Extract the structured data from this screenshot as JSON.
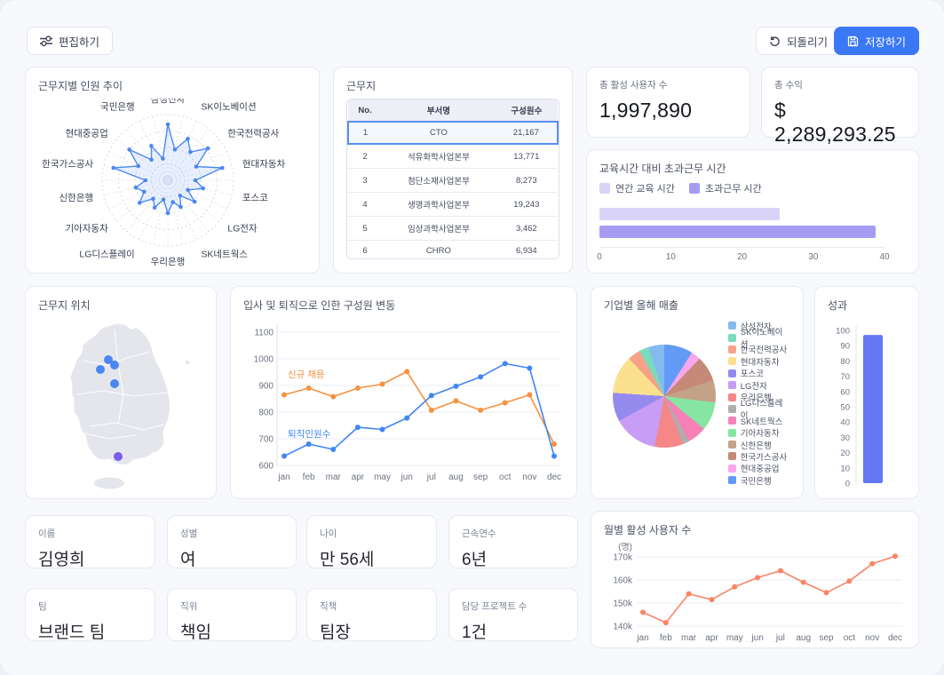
{
  "toolbar": {
    "edit_label": "편집하기",
    "undo_label": "되돌리기",
    "save_label": "저장하기"
  },
  "cards": {
    "table": {
      "title": "근무지",
      "columns": [
        "No.",
        "부서명",
        "구성원수"
      ],
      "rows": [
        [
          "1",
          "CTO",
          "21,167"
        ],
        [
          "2",
          "석유화학사업본부",
          "13,771"
        ],
        [
          "3",
          "첨단소재사업본부",
          "8,273"
        ],
        [
          "4",
          "생명과학사업본부",
          "19,243"
        ],
        [
          "5",
          "임상과학사업본부",
          "3,462"
        ],
        [
          "6",
          "CHRO",
          "6,934"
        ]
      ],
      "selected_row_index": 0
    },
    "stat_users": {
      "label": "총 활성 사용자 수",
      "value": "1,997,890"
    },
    "stat_revenue": {
      "label": "총 수익",
      "value": "$ 2,289,293.25"
    },
    "map": {
      "title": "근무지 위치",
      "points": [
        {
          "x": 79,
          "y": 47,
          "color": "#4b87f2"
        },
        {
          "x": 86,
          "y": 53,
          "color": "#4b87f2"
        },
        {
          "x": 70,
          "y": 58,
          "color": "#4b87f2"
        },
        {
          "x": 86,
          "y": 74,
          "color": "#4b87f2"
        },
        {
          "x": 90,
          "y": 156,
          "color": "#7d5bee"
        }
      ]
    },
    "fields": {
      "name": {
        "label": "이름",
        "value": "김영희"
      },
      "gender": {
        "label": "성별",
        "value": "여"
      },
      "age": {
        "label": "나이",
        "value": "만 56세"
      },
      "tenure": {
        "label": "근속연수",
        "value": "6년"
      },
      "team": {
        "label": "팀",
        "value": "브랜드 팀"
      },
      "position": {
        "label": "직위",
        "value": "책임"
      },
      "role": {
        "label": "직책",
        "value": "팀장"
      },
      "projects": {
        "label": "담당 프로젝트 수",
        "value": "1건"
      }
    }
  },
  "chart_data": [
    {
      "id": "radar-headcount",
      "type": "radar",
      "title": "근무지별 인원 추이",
      "categories": [
        "삼성전자",
        "SK이노베이션",
        "한국전력공사",
        "현대자동차",
        "포스코",
        "LG전자",
        "SK네트웍스",
        "우리은행",
        "LG디스플레이",
        "기아자동차",
        "신한은행",
        "한국가스공사",
        "현대중공업",
        "국민은행"
      ],
      "values": [
        85,
        70,
        78,
        85,
        55,
        52,
        45,
        50,
        46,
        55,
        50,
        85,
        75,
        58
      ],
      "between_values": [
        48,
        55,
        48,
        42,
        34,
        30,
        34,
        30,
        36,
        40,
        34,
        50,
        40,
        34
      ],
      "rlim": [
        0,
        100
      ],
      "color": "#4b87f2"
    },
    {
      "id": "hours-bars",
      "type": "bar",
      "orientation": "horizontal",
      "title": "교육시간 대비 초과근무 시간",
      "categories": [
        "연간 교육 시간",
        "초과근무 시간"
      ],
      "values": [
        25.3,
        38.7
      ],
      "colors": [
        "#d9d3f8",
        "#a69bf3"
      ],
      "xlim": [
        0,
        40
      ],
      "xticks": [
        0,
        10,
        20,
        30,
        40
      ]
    },
    {
      "id": "attrition-line",
      "type": "line",
      "title": "입사 및 퇴직으로 인한 구성원 변동",
      "x": [
        "jan",
        "feb",
        "mar",
        "apr",
        "may",
        "jun",
        "jul",
        "aug",
        "sep",
        "oct",
        "nov",
        "dec"
      ],
      "series": [
        {
          "name": "신규 채용",
          "color": "#f79240",
          "values": [
            865,
            890,
            858,
            890,
            905,
            952,
            807,
            842,
            807,
            835,
            865,
            680
          ]
        },
        {
          "name": "퇴직인원수",
          "color": "#4186f5",
          "values": [
            635,
            680,
            660,
            743,
            735,
            778,
            862,
            897,
            932,
            982,
            965,
            635
          ]
        }
      ],
      "ylim": [
        600,
        1100
      ],
      "yticks": [
        600,
        700,
        800,
        900,
        1000,
        1100
      ],
      "annotations": [
        {
          "text": "신규 채용",
          "color": "#f79240",
          "y_value": 930
        },
        {
          "text": "퇴직인원수",
          "color": "#4186f5",
          "y_value": 706
        }
      ]
    },
    {
      "id": "revenue-pie",
      "type": "pie",
      "title": "기업별 올해 매출",
      "labels": [
        "삼성전자",
        "SK이노베이션",
        "한국전력공사",
        "현대자동차",
        "포스코",
        "LG전자",
        "우리은행",
        "LG디스플레이",
        "SK네트웍스",
        "기아자동차",
        "신한은행",
        "한국가스공사",
        "현대중공업",
        "국민은행"
      ],
      "values": [
        5,
        3,
        4,
        12,
        9,
        14,
        9,
        2,
        6,
        9,
        7,
        8,
        3,
        9
      ],
      "colors": [
        "#85b9f0",
        "#79dcba",
        "#f6a289",
        "#fbe08e",
        "#958bee",
        "#c79df6",
        "#f58789",
        "#aeaeae",
        "#f780b6",
        "#86e5a2",
        "#c4a287",
        "#c58a77",
        "#f9a6ec",
        "#639af5"
      ],
      "direction": "counterclockwise-from-top",
      "legend_position": "right"
    },
    {
      "id": "performance-bar",
      "type": "bar",
      "title": "성과",
      "categories": [
        ""
      ],
      "values": [
        97
      ],
      "color": "#6478f2",
      "ylim": [
        0,
        100
      ],
      "yticks": [
        0,
        10,
        20,
        30,
        40,
        50,
        60,
        70,
        80,
        90,
        100
      ]
    },
    {
      "id": "mau-line",
      "type": "line",
      "title": "월별 활성 사용자 수",
      "unit_label": "(명)",
      "x": [
        "jan",
        "feb",
        "mar",
        "apr",
        "may",
        "jun",
        "jul",
        "aug",
        "sep",
        "oct",
        "nov",
        "dec"
      ],
      "series": [
        {
          "name": "월별 활성 사용자 수",
          "color": "#fa8464",
          "values": [
            146,
            141.5,
            154,
            151.5,
            157,
            161,
            164,
            159,
            154.5,
            159.5,
            167,
            170.3
          ]
        }
      ],
      "ylim": [
        140,
        170
      ],
      "yticks": [
        140,
        150,
        160,
        170
      ],
      "ytick_labels": [
        "140k",
        "150k",
        "160k",
        "170k"
      ]
    }
  ]
}
